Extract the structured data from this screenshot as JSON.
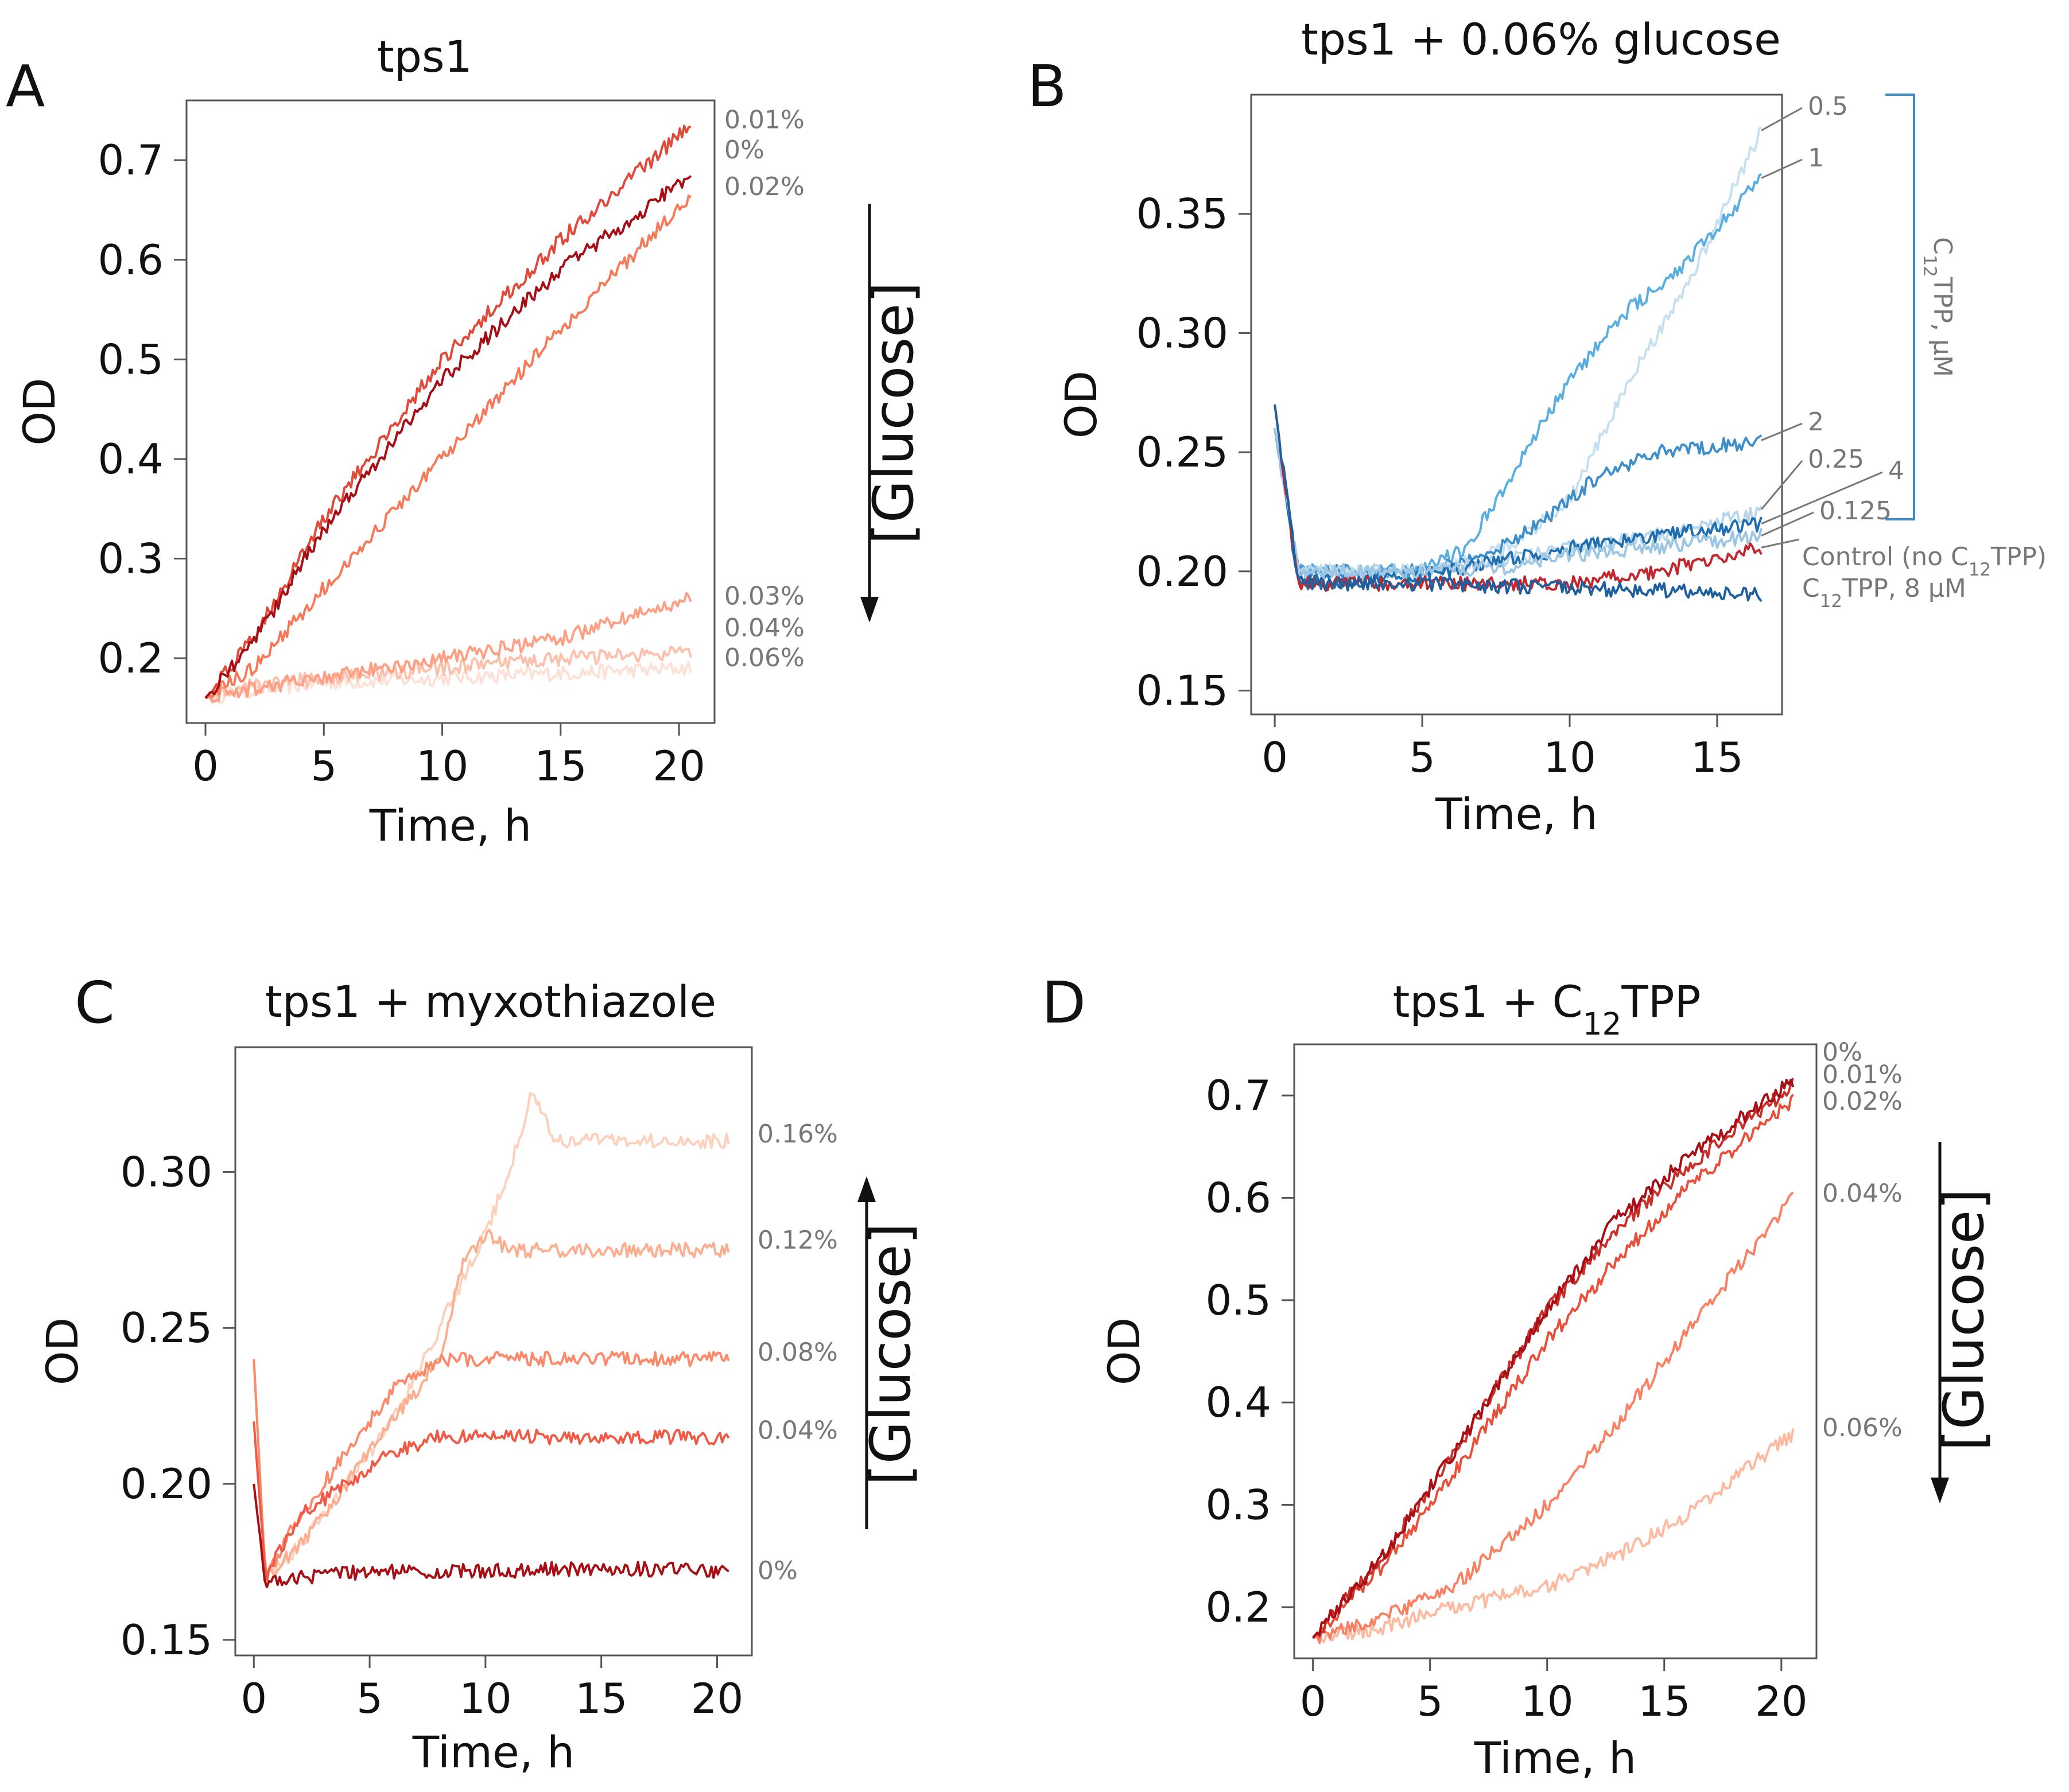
{
  "figure": {
    "panels": [
      {
        "letter": "A",
        "chart_data": {
          "type": "line",
          "title": "tps1",
          "xlabel": "Time, h",
          "ylabel": "OD",
          "xlim": [
            -0.8,
            21.5
          ],
          "ylim": [
            0.135,
            0.76
          ],
          "xticks": [
            0,
            5,
            10,
            15,
            20
          ],
          "xtick_labels": [
            "0",
            "5",
            "10",
            "15",
            "20"
          ],
          "yticks": [
            0.2,
            0.3,
            0.4,
            0.5,
            0.6,
            0.7
          ],
          "ytick_labels": [
            "0.2",
            "0.3",
            "0.4",
            "0.5",
            "0.6",
            "0.7"
          ],
          "series": [
            {
              "name": "0.06%",
              "color": "#fde0d6",
              "x": [
                0,
                2,
                5,
                10,
                15,
                20.5
              ],
              "y": [
                0.16,
                0.168,
                0.175,
                0.18,
                0.185,
                0.19
              ]
            },
            {
              "name": "0.04%",
              "color": "#fcc0ab",
              "x": [
                0,
                2,
                5,
                10,
                15,
                20.5
              ],
              "y": [
                0.16,
                0.172,
                0.18,
                0.19,
                0.2,
                0.205
              ]
            },
            {
              "name": "0.03%",
              "color": "#fc9f84",
              "x": [
                0,
                2,
                5,
                10,
                15,
                20.5
              ],
              "y": [
                0.16,
                0.17,
                0.18,
                0.2,
                0.22,
                0.26
              ]
            },
            {
              "name": "0.02%",
              "color": "#f67a5a",
              "x": [
                0,
                2,
                5,
                10,
                15,
                20.5
              ],
              "y": [
                0.16,
                0.19,
                0.27,
                0.4,
                0.53,
                0.665
              ]
            },
            {
              "name": "0.01%",
              "color": "#e04a3a",
              "x": [
                0,
                2,
                5,
                10,
                15,
                20.5
              ],
              "y": [
                0.16,
                0.22,
                0.34,
                0.5,
                0.62,
                0.735
              ]
            },
            {
              "name": "0%",
              "color": "#a50f15",
              "x": [
                0,
                2,
                5,
                10,
                15,
                20.5
              ],
              "y": [
                0.16,
                0.215,
                0.33,
                0.48,
                0.59,
                0.685
              ]
            }
          ],
          "annotations": {
            "arrow": "down",
            "arrow_label": "[Glucose]"
          }
        }
      },
      {
        "letter": "B",
        "chart_data": {
          "type": "line",
          "title": "tps1 + 0.06% glucose",
          "xlabel": "Time, h",
          "ylabel": "OD",
          "xlim": [
            -0.8,
            17.2
          ],
          "ylim": [
            0.14,
            0.4
          ],
          "xticks": [
            0,
            5,
            10,
            15
          ],
          "xtick_labels": [
            "0",
            "5",
            "10",
            "15"
          ],
          "yticks": [
            0.15,
            0.2,
            0.25,
            0.3,
            0.35
          ],
          "ytick_labels": [
            "0.15",
            "0.20",
            "0.25",
            "0.30",
            "0.35"
          ],
          "series": [
            {
              "name": "0.5",
              "color": "#c6e0f0",
              "x": [
                0,
                0.8,
                5,
                8,
                10,
                12,
                14,
                16.5
              ],
              "y": [
                0.26,
                0.2,
                0.2,
                0.21,
                0.23,
                0.28,
                0.32,
                0.385
              ]
            },
            {
              "name": "1",
              "color": "#5aaee0",
              "x": [
                0,
                0.8,
                5,
                6.5,
                8,
                10,
                12,
                14,
                16.5
              ],
              "y": [
                0.26,
                0.2,
                0.2,
                0.21,
                0.24,
                0.28,
                0.31,
                0.33,
                0.365
              ]
            },
            {
              "name": "2",
              "color": "#3d8ec9",
              "x": [
                0,
                0.8,
                5,
                7,
                9,
                11,
                13,
                16.5
              ],
              "y": [
                0.26,
                0.2,
                0.2,
                0.205,
                0.22,
                0.24,
                0.25,
                0.255
              ]
            },
            {
              "name": "0.25",
              "color": "#b8d6eb",
              "x": [
                0,
                0.8,
                5,
                8,
                10,
                13,
                16.5
              ],
              "y": [
                0.26,
                0.2,
                0.2,
                0.205,
                0.21,
                0.215,
                0.225
              ]
            },
            {
              "name": "4",
              "color": "#1f6fb0",
              "x": [
                0,
                0.8,
                5,
                8,
                10,
                13,
                16.5
              ],
              "y": [
                0.26,
                0.195,
                0.198,
                0.205,
                0.21,
                0.215,
                0.22
              ]
            },
            {
              "name": "0.125",
              "color": "#9cc6e4",
              "x": [
                0,
                0.8,
                5,
                8,
                10,
                13,
                16.5
              ],
              "y": [
                0.26,
                0.2,
                0.2,
                0.202,
                0.207,
                0.21,
                0.215
              ]
            },
            {
              "name": "Control (no C₁₂TPP)",
              "color": "#c1272d",
              "x": [
                0,
                0.8,
                5,
                10,
                13,
                16.5
              ],
              "y": [
                0.27,
                0.195,
                0.195,
                0.195,
                0.2,
                0.21
              ]
            },
            {
              "name": "C₁₂TPP, 8 μM",
              "color": "#1f5f9e",
              "x": [
                0,
                0.8,
                5,
                10,
                13,
                16.5
              ],
              "y": [
                0.27,
                0.195,
                0.195,
                0.193,
                0.192,
                0.19
              ]
            }
          ],
          "annotations": {
            "bracket_label": "C₁₂TPP, μM"
          }
        }
      },
      {
        "letter": "C",
        "chart_data": {
          "type": "line",
          "title": "tps1 + myxothiazole",
          "xlabel": "Time, h",
          "ylabel": "OD",
          "xlim": [
            -0.8,
            21.5
          ],
          "ylim": [
            0.145,
            0.34
          ],
          "xticks": [
            0,
            5,
            10,
            15,
            20
          ],
          "xtick_labels": [
            "0",
            "5",
            "10",
            "15",
            "20"
          ],
          "yticks": [
            0.15,
            0.2,
            0.25,
            0.3
          ],
          "ytick_labels": [
            "0.15",
            "0.20",
            "0.25",
            "0.30"
          ],
          "series": [
            {
              "name": "0.16%",
              "color": "#fdd0bc",
              "x": [
                0,
                0.5,
                2,
                4,
                6,
                8,
                10,
                11,
                12,
                13,
                15,
                20.5
              ],
              "y": [
                0.24,
                0.17,
                0.18,
                0.2,
                0.22,
                0.25,
                0.28,
                0.3,
                0.325,
                0.31,
                0.31,
                0.31
              ]
            },
            {
              "name": "0.12%",
              "color": "#fcae91",
              "x": [
                0,
                0.5,
                2,
                4,
                6,
                8,
                9,
                10,
                11,
                15,
                20.5
              ],
              "y": [
                0.24,
                0.17,
                0.18,
                0.2,
                0.22,
                0.24,
                0.27,
                0.28,
                0.275,
                0.275,
                0.275
              ]
            },
            {
              "name": "0.08%",
              "color": "#fb8a6a",
              "x": [
                0,
                0.5,
                2,
                4,
                5,
                6,
                7,
                8,
                10,
                15,
                20.5
              ],
              "y": [
                0.24,
                0.17,
                0.19,
                0.21,
                0.22,
                0.23,
                0.235,
                0.24,
                0.24,
                0.24,
                0.24
              ]
            },
            {
              "name": "0.04%",
              "color": "#ef5a46",
              "x": [
                0,
                0.5,
                2,
                4,
                6,
                8,
                10,
                15,
                20.5
              ],
              "y": [
                0.22,
                0.17,
                0.19,
                0.2,
                0.21,
                0.215,
                0.215,
                0.215,
                0.215
              ]
            },
            {
              "name": "0%",
              "color": "#a50f15",
              "x": [
                0,
                0.5,
                2,
                5,
                10,
                15,
                20.5
              ],
              "y": [
                0.2,
                0.168,
                0.17,
                0.172,
                0.172,
                0.173,
                0.172
              ]
            }
          ],
          "annotations": {
            "arrow": "up",
            "arrow_label": "[Glucose]"
          }
        }
      },
      {
        "letter": "D",
        "chart_data": {
          "type": "line",
          "title": "tps1 + C₁₂TPP",
          "xlabel": "Time, h",
          "ylabel": "OD",
          "xlim": [
            -0.8,
            21.5
          ],
          "ylim": [
            0.15,
            0.75
          ],
          "xticks": [
            0,
            5,
            10,
            15,
            20
          ],
          "xtick_labels": [
            "0",
            "5",
            "10",
            "15",
            "20"
          ],
          "yticks": [
            0.2,
            0.3,
            0.4,
            0.5,
            0.6,
            0.7
          ],
          "ytick_labels": [
            "0.2",
            "0.3",
            "0.4",
            "0.5",
            "0.6",
            "0.7"
          ],
          "series": [
            {
              "name": "0.06%",
              "color": "#fcbba1",
              "x": [
                0,
                3,
                6,
                10,
                13,
                16,
                20.5
              ],
              "y": [
                0.17,
                0.18,
                0.2,
                0.22,
                0.25,
                0.29,
                0.37
              ]
            },
            {
              "name": "0.04%",
              "color": "#f88063",
              "x": [
                0,
                3,
                6,
                10,
                13,
                16,
                20.5
              ],
              "y": [
                0.17,
                0.19,
                0.22,
                0.3,
                0.38,
                0.47,
                0.6
              ]
            },
            {
              "name": "0.02%",
              "color": "#e8503c",
              "x": [
                0,
                3,
                6,
                10,
                13,
                16,
                20.5
              ],
              "y": [
                0.17,
                0.24,
                0.33,
                0.46,
                0.54,
                0.61,
                0.695
              ]
            },
            {
              "name": "0.01%",
              "color": "#cb2f2a",
              "x": [
                0,
                3,
                6,
                10,
                13,
                16,
                20.5
              ],
              "y": [
                0.17,
                0.25,
                0.35,
                0.49,
                0.57,
                0.63,
                0.71
              ]
            },
            {
              "name": "0%",
              "color": "#a50f15",
              "x": [
                0,
                3,
                6,
                10,
                13,
                16,
                20.5
              ],
              "y": [
                0.17,
                0.25,
                0.35,
                0.49,
                0.58,
                0.64,
                0.715
              ]
            }
          ],
          "annotations": {
            "arrow": "down",
            "arrow_label": "[Glucose]"
          }
        }
      }
    ]
  }
}
